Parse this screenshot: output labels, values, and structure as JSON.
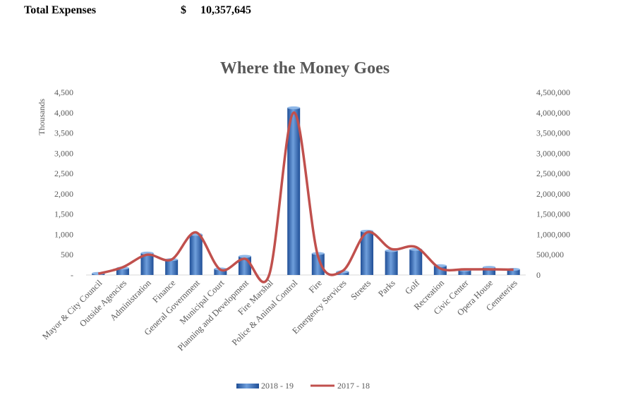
{
  "summary": {
    "label": "Total Expenses",
    "currency": "$",
    "amount": "10,357,645"
  },
  "colors": {
    "bar": "#2e5fa8",
    "bar_light": "#7eaee3",
    "line": "#c0504d",
    "text": "#595959"
  },
  "chart_data": {
    "type": "bar",
    "title": "Where the Money Goes",
    "y_left_label": "Thousands",
    "y_left_ticks": [
      "-",
      "500",
      "1,000",
      "1,500",
      "2,000",
      "2,500",
      "3,000",
      "3,500",
      "4,000",
      "4,500"
    ],
    "y_right_ticks": [
      "0",
      "500,000",
      "1,000,000",
      "1,500,000",
      "2,000,000",
      "2,500,000",
      "3,000,000",
      "3,500,000",
      "4,000,000",
      "4,500,000"
    ],
    "ylim": [
      0,
      4500
    ],
    "categories": [
      "Mayor & City Council",
      "Outside Agencies",
      "Administration",
      "Finance",
      "General Government",
      "Municipal Court",
      "Planning and Development",
      "Fire Marshal",
      "Police & Animal Control",
      "Fire",
      "Emergency Services",
      "Streets",
      "Parks",
      "Golf",
      "Recreation",
      "Civic Center",
      "Opera House",
      "Cemeteries"
    ],
    "series": [
      {
        "name": "2018 - 19",
        "type": "bar",
        "axis": "left",
        "values": [
          40,
          170,
          540,
          380,
          1000,
          150,
          460,
          0,
          4120,
          530,
          80,
          1080,
          600,
          630,
          230,
          120,
          190,
          140
        ]
      },
      {
        "name": "2017 - 18",
        "type": "line",
        "axis": "right",
        "values": [
          30000,
          190000,
          500000,
          380000,
          1050000,
          130000,
          400000,
          10000,
          4000000,
          450000,
          100000,
          1050000,
          640000,
          690000,
          160000,
          140000,
          140000,
          130000
        ]
      }
    ],
    "legend_position": "bottom"
  }
}
